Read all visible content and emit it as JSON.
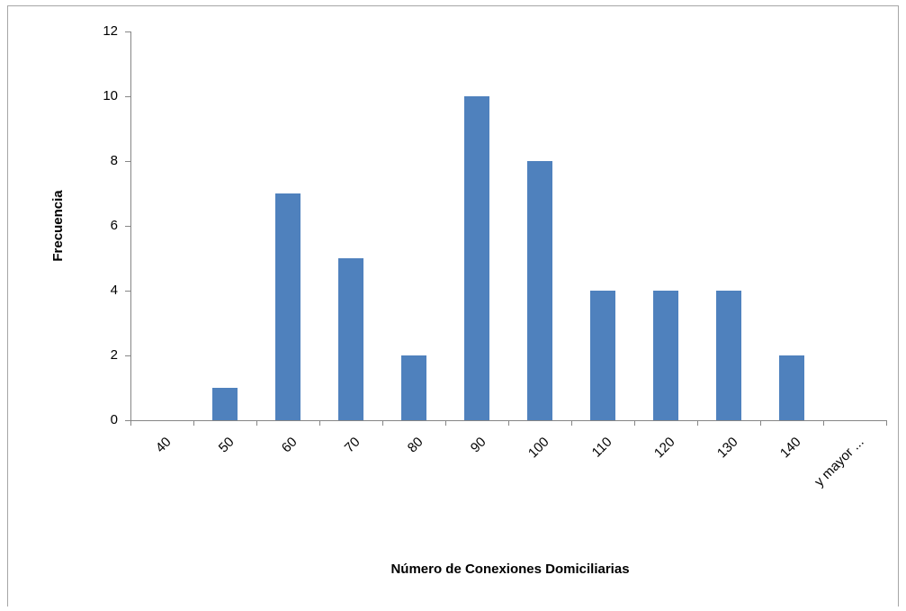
{
  "chart_data": {
    "type": "bar",
    "xlabel": "Número de Conexiones Domiciliarias",
    "ylabel": "Frecuencia",
    "categories": [
      "40",
      "50",
      "60",
      "70",
      "80",
      "90",
      "100",
      "110",
      "120",
      "130",
      "140",
      "y mayor ..."
    ],
    "values": [
      0,
      1,
      7,
      5,
      2,
      10,
      8,
      4,
      4,
      4,
      2,
      0
    ],
    "color": "#4f81bd",
    "ylim": [
      0,
      12
    ],
    "yticks": [
      0,
      2,
      4,
      6,
      8,
      10,
      12
    ],
    "grid": false
  }
}
